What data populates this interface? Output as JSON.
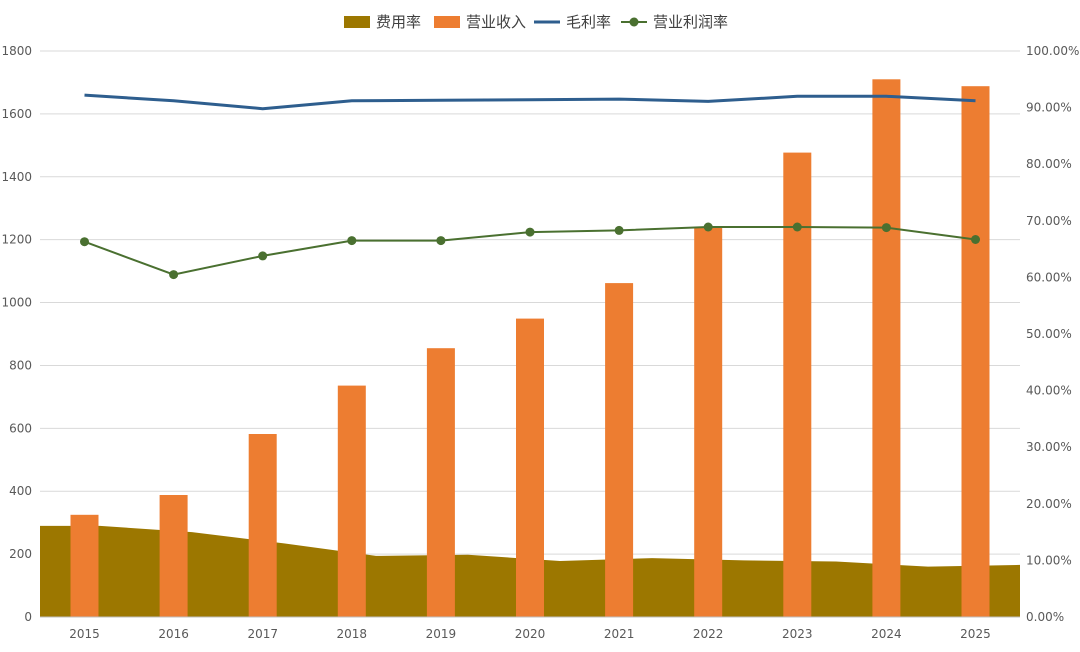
{
  "chart_data": {
    "type": "bar",
    "categories": [
      "2015",
      "2016",
      "2017",
      "2018",
      "2019",
      "2020",
      "2021",
      "2022",
      "2023",
      "2024",
      "2025"
    ],
    "y_left": {
      "ylim": [
        0,
        1800
      ],
      "ticks": [
        "0",
        "200",
        "400",
        "600",
        "800",
        "1000",
        "1200",
        "1400",
        "1600",
        "1800"
      ]
    },
    "y_right": {
      "ylim": [
        0,
        100
      ],
      "ticks": [
        "0.00%",
        "10.00%",
        "20.00%",
        "30.00%",
        "40.00%",
        "50.00%",
        "60.00%",
        "70.00%",
        "80.00%",
        "90.00%",
        "100.00%"
      ]
    },
    "grid": true,
    "legend_position": "top-center",
    "series": [
      {
        "name": "费用率",
        "type": "area",
        "axis": "right",
        "color": "#9C7700",
        "values": [
          16.1,
          15.0,
          13.0,
          10.8,
          11.0,
          9.9,
          10.4,
          10.0,
          9.8,
          8.9,
          9.2
        ]
      },
      {
        "name": "营业收入",
        "type": "bar",
        "axis": "left",
        "color": "#ED7D31",
        "values": [
          325,
          388,
          582,
          736,
          855,
          949,
          1062,
          1241,
          1477,
          1710,
          1688
        ]
      },
      {
        "name": "毛利率",
        "type": "line",
        "axis": "right",
        "color": "#2E5E8E",
        "values": [
          92.2,
          91.2,
          89.8,
          91.2,
          91.3,
          91.4,
          91.5,
          91.1,
          92.0,
          92.0,
          91.2
        ]
      },
      {
        "name": "营业利润率",
        "type": "line-marker",
        "axis": "right",
        "color": "#4A7030",
        "values": [
          66.3,
          60.5,
          63.8,
          66.5,
          66.5,
          68.0,
          68.3,
          68.9,
          68.9,
          68.8,
          66.7
        ]
      }
    ]
  }
}
